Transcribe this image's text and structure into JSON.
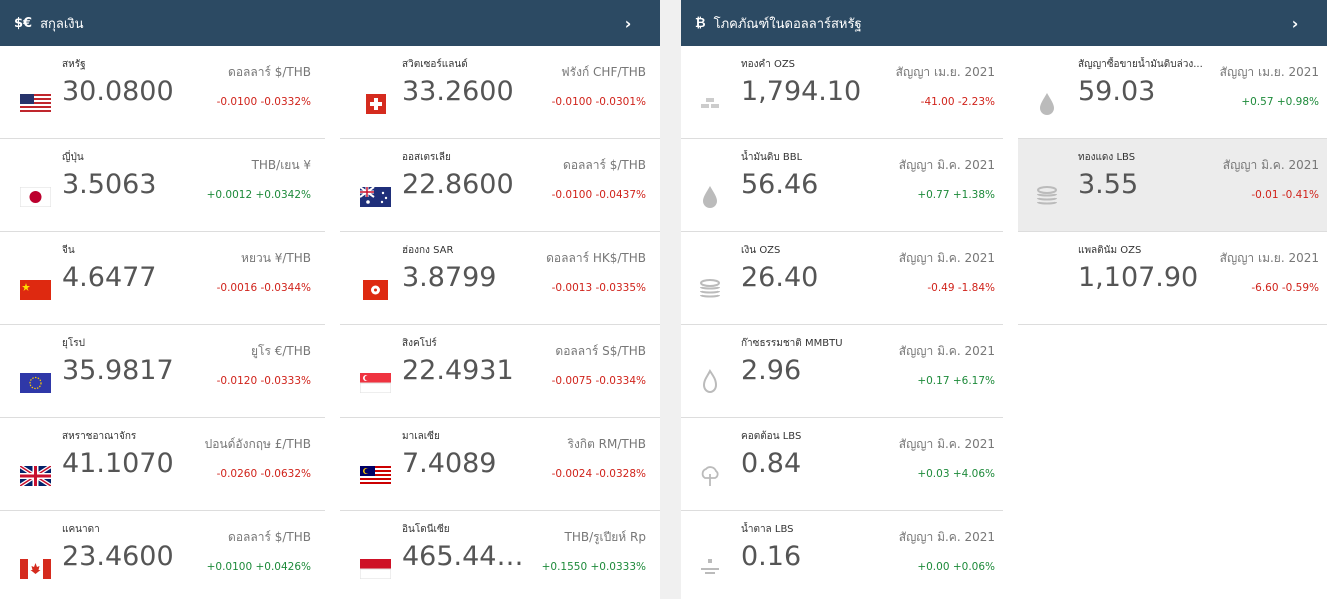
{
  "currency_panel": {
    "symbol": "$€",
    "title": "สกุลเงิน",
    "chevron": "›"
  },
  "commodity_panel": {
    "symbol": "₿",
    "title": "โภคภัณฑ์ในดอลลาร์สหรัฐ",
    "chevron": "›"
  },
  "currencies": [
    {
      "name": "สหรัฐ",
      "value": "30.0800",
      "unit": "ดอลลาร์ $/THB",
      "change": "-0.0100 -0.0332%",
      "dir": "neg",
      "flag": "us-flag"
    },
    {
      "name": "สวิตเซอร์แลนด์",
      "value": "33.2600",
      "unit": "ฟรังก์ CHF/THB",
      "change": "-0.0100 -0.0301%",
      "dir": "neg",
      "flag": "ch-flag"
    },
    {
      "name": "ญี่ปุ่น",
      "value": "3.5063",
      "unit": "THB/เยน ¥",
      "change": "+0.0012 +0.0342%",
      "dir": "pos",
      "flag": "jp-flag"
    },
    {
      "name": "ออสเตรเลีย",
      "value": "22.8600",
      "unit": "ดอลลาร์ $/THB",
      "change": "-0.0100 -0.0437%",
      "dir": "neg",
      "flag": "au-flag"
    },
    {
      "name": "จีน",
      "value": "4.6477",
      "unit": "หยวน ¥/THB",
      "change": "-0.0016 -0.0344%",
      "dir": "neg",
      "flag": "cn-flag"
    },
    {
      "name": "ฮ่องกง SAR",
      "value": "3.8799",
      "unit": "ดอลลาร์ HK$/THB",
      "change": "-0.0013 -0.0335%",
      "dir": "neg",
      "flag": "hk-flag"
    },
    {
      "name": "ยุโรป",
      "value": "35.9817",
      "unit": "ยูโร €/THB",
      "change": "-0.0120 -0.0333%",
      "dir": "neg",
      "flag": "eu-flag"
    },
    {
      "name": "สิงคโปร์",
      "value": "22.4931",
      "unit": "ดอลลาร์ S$/THB",
      "change": "-0.0075 -0.0334%",
      "dir": "neg",
      "flag": "sg-flag"
    },
    {
      "name": "สหราชอาณาจักร",
      "value": "41.1070",
      "unit": "ปอนด์อังกฤษ £/THB",
      "change": "-0.0260 -0.0632%",
      "dir": "neg",
      "flag": "gb-flag"
    },
    {
      "name": "มาเลเซีย",
      "value": "7.4089",
      "unit": "ริงกิต RM/THB",
      "change": "-0.0024 -0.0328%",
      "dir": "neg",
      "flag": "my-flag"
    },
    {
      "name": "แคนาดา",
      "value": "23.4600",
      "unit": "ดอลลาร์ $/THB",
      "change": "+0.0100 +0.0426%",
      "dir": "pos",
      "flag": "ca-flag"
    },
    {
      "name": "อินโดนีเซีย",
      "value": "465.44…",
      "unit": "THB/รูเปียห์ Rp",
      "change": "+0.1550 +0.0333%",
      "dir": "pos",
      "flag": "id-flag"
    }
  ],
  "commodities_left": [
    {
      "name": "ทองคำ OZS",
      "value": "1,794.10",
      "contract": "สัญญา เม.ย. 2021",
      "change": "-41.00 -2.23%",
      "dir": "neg",
      "icon": "gold-bars-icon"
    },
    {
      "name": "น้ำมันดิบ BBL",
      "value": "56.46",
      "contract": "สัญญา มิ.ค. 2021",
      "change": "+0.77 +1.38%",
      "dir": "pos",
      "icon": "oil-drop-icon"
    },
    {
      "name": "เงิน OZS",
      "value": "26.40",
      "contract": "สัญญา มิ.ค. 2021",
      "change": "-0.49 -1.84%",
      "dir": "neg",
      "icon": "coin-stack-icon"
    },
    {
      "name": "ก๊าซธรรมชาติ MMBTU",
      "value": "2.96",
      "contract": "สัญญา มิ.ค. 2021",
      "change": "+0.17 +6.17%",
      "dir": "pos",
      "icon": "flame-icon"
    },
    {
      "name": "คอตต้อน LBS",
      "value": "0.84",
      "contract": "สัญญา มิ.ค. 2021",
      "change": "+0.03 +4.06%",
      "dir": "pos",
      "icon": "cotton-icon"
    },
    {
      "name": "น้ำตาล LBS",
      "value": "0.16",
      "contract": "สัญญา มิ.ค. 2021",
      "change": "+0.00 +0.06%",
      "dir": "pos",
      "icon": "sugar-icon"
    }
  ],
  "commodities_right": [
    {
      "name": "สัญญาซื้อขายน้ำมันดิบล่วง...",
      "value": "59.03",
      "contract": "สัญญา เม.ย. 2021",
      "change": "+0.57 +0.98%",
      "dir": "pos",
      "icon": "oil-drop-icon"
    },
    {
      "name": "ทองแดง LBS",
      "value": "3.55",
      "contract": "สัญญา มิ.ค. 2021",
      "change": "-0.01 -0.41%",
      "dir": "neg",
      "icon": "coin-stack-icon"
    },
    {
      "name": "แพลตินัม OZS",
      "value": "1,107.90",
      "contract": "สัญญา เม.ย. 2021",
      "change": "-6.60 -0.59%",
      "dir": "neg",
      "icon": "none"
    }
  ],
  "colors": {
    "header": "#2c4a63",
    "negative": "#d0231b",
    "positive": "#1d8a3a"
  }
}
